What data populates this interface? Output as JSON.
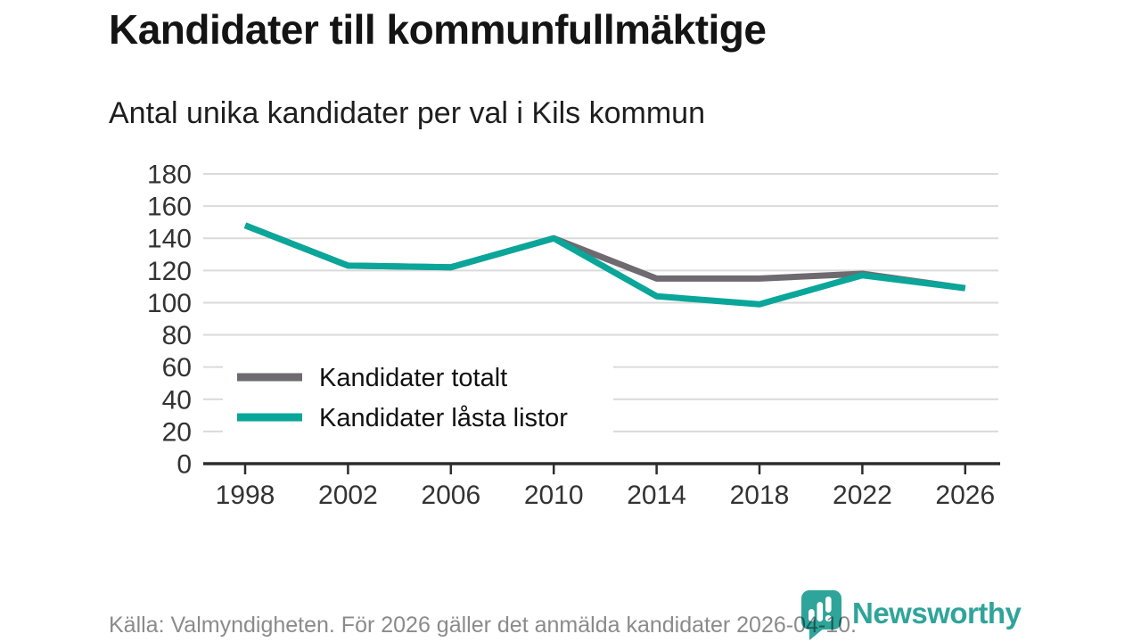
{
  "header": {
    "title": "Kandidater till kommunfullmäktige",
    "subtitle": "Antal unika kandidater per val i Kils kommun"
  },
  "chart_data": {
    "type": "line",
    "title": "Kandidater till kommunfullmäktige",
    "subtitle": "Antal unika kandidater per val i Kils kommun",
    "categories": [
      "1998",
      "2002",
      "2006",
      "2010",
      "2014",
      "2018",
      "2022",
      "2026"
    ],
    "series": [
      {
        "name": "Kandidater totalt",
        "color": "#6e6a70",
        "values": [
          148,
          123,
          122,
          140,
          115,
          115,
          118,
          109
        ]
      },
      {
        "name": "Kandidater låsta listor",
        "color": "#0aa69a",
        "values": [
          148,
          123,
          122,
          140,
          104,
          99,
          117,
          109
        ]
      }
    ],
    "xlabel": "",
    "ylabel": "",
    "ylim": [
      0,
      180
    ],
    "ytick_step": 20,
    "grid": "horizontal",
    "legend_position": "inside-bottom-left",
    "axis_color": "#2d2d2d",
    "grid_color": "#dadada",
    "tick_label_color": "#333333",
    "legend_text_color": "#111111"
  },
  "footer": {
    "source_note": "Källa: Valmyndigheten. För 2026 gäller det anmälda kandidater 2026-04-10.",
    "brand": "Newsworthy",
    "brand_color": "#2fa49a"
  }
}
